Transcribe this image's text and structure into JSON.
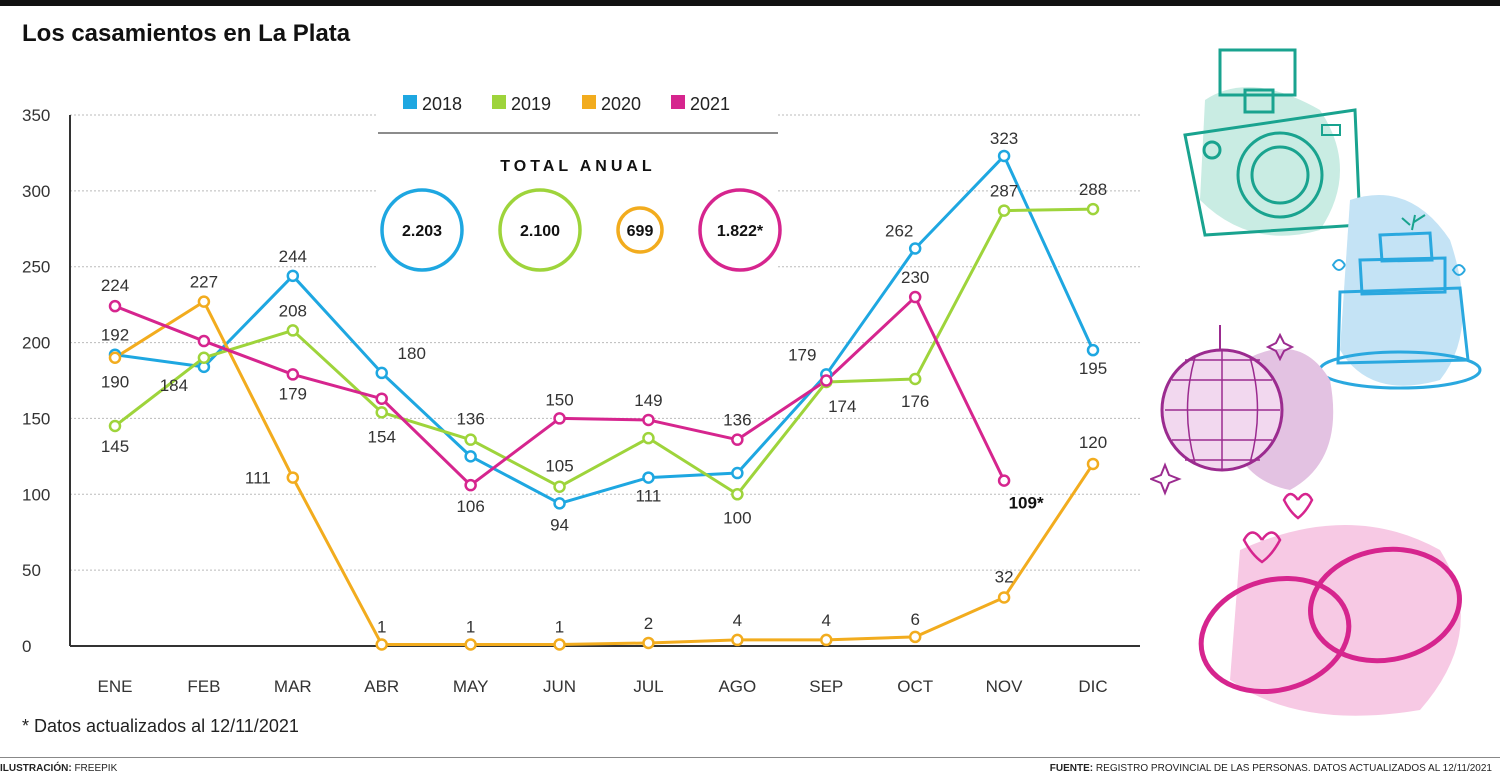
{
  "title": "Los casamientos en La Plata",
  "footnote": "* Datos actualizados al 12/11/2021",
  "credit_label": "ILUSTRACIÓN:",
  "credit_value": "FREEPIK",
  "source_label": "FUENTE:",
  "source_value": "REGISTRO PROVINCIAL DE LAS PERSONAS. DATOS ACTUALIZADOS AL 12/11/2021",
  "totals_title": "TOTAL ANUAL",
  "totals": [
    {
      "year": "2018",
      "label": "2.203",
      "color": "#1ea7e1"
    },
    {
      "year": "2019",
      "label": "2.100",
      "color": "#9ed43b"
    },
    {
      "year": "2020",
      "label": "699",
      "color": "#f2ac1e"
    },
    {
      "year": "2021",
      "label": "1.822*",
      "color": "#d6258e"
    }
  ],
  "chart_data": {
    "type": "line",
    "title": "Los casamientos en La Plata",
    "xlabel": "",
    "ylabel": "",
    "ylim": [
      0,
      350
    ],
    "yticks": [
      0,
      50,
      100,
      150,
      200,
      250,
      300,
      350
    ],
    "grid": true,
    "legend": "top-center",
    "categories": [
      "ENE",
      "FEB",
      "MAR",
      "ABR",
      "MAY",
      "JUN",
      "JUL",
      "AGO",
      "SEP",
      "OCT",
      "NOV",
      "DIC"
    ],
    "series": [
      {
        "name": "2018",
        "color": "#1ea7e1",
        "values": [
          192,
          184,
          244,
          180,
          125,
          94,
          111,
          114,
          179,
          262,
          323,
          195
        ],
        "labels": [
          "192",
          "184",
          "244",
          "180",
          "",
          "94",
          "111",
          "",
          "179",
          "262",
          "323",
          "195"
        ]
      },
      {
        "name": "2019",
        "color": "#9ed43b",
        "values": [
          145,
          190,
          208,
          154,
          136,
          105,
          137,
          100,
          174,
          176,
          287,
          288
        ],
        "labels": [
          "145",
          "",
          "208",
          "154",
          "136",
          "105",
          "",
          "100",
          "174",
          "176",
          "287",
          "288"
        ]
      },
      {
        "name": "2020",
        "color": "#f2ac1e",
        "values": [
          190,
          227,
          111,
          1,
          1,
          1,
          2,
          4,
          4,
          6,
          32,
          120
        ],
        "labels": [
          "190",
          "227",
          "111",
          "1",
          "1",
          "1",
          "2",
          "4",
          "4",
          "6",
          "32",
          "120"
        ]
      },
      {
        "name": "2021",
        "color": "#d6258e",
        "values": [
          224,
          201,
          179,
          163,
          106,
          150,
          149,
          136,
          175,
          230,
          109,
          null
        ],
        "labels": [
          "224",
          "",
          "179",
          "",
          "106",
          "150",
          "149",
          "136",
          "",
          "230",
          "109*",
          ""
        ]
      }
    ]
  }
}
